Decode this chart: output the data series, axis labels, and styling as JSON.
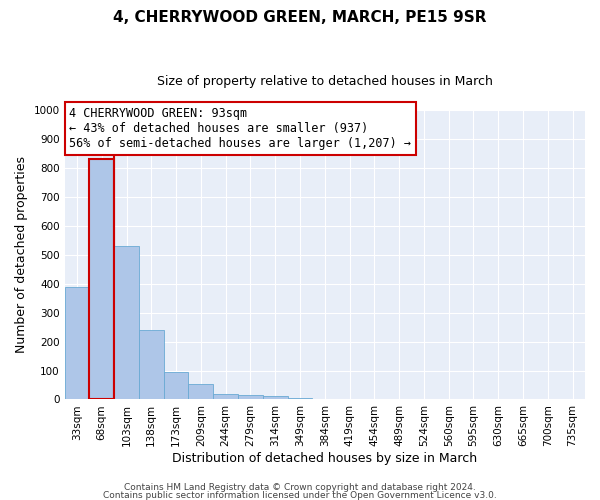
{
  "title": "4, CHERRYWOOD GREEN, MARCH, PE15 9SR",
  "subtitle": "Size of property relative to detached houses in March",
  "xlabel": "Distribution of detached houses by size in March",
  "ylabel": "Number of detached properties",
  "bar_color": "#aec6e8",
  "bar_edge_color": "#6aaad4",
  "highlight_color": "#cc0000",
  "background_color": "#e8eef8",
  "grid_color": "#ffffff",
  "categories": [
    "33sqm",
    "68sqm",
    "103sqm",
    "138sqm",
    "173sqm",
    "209sqm",
    "244sqm",
    "279sqm",
    "314sqm",
    "349sqm",
    "384sqm",
    "419sqm",
    "454sqm",
    "489sqm",
    "524sqm",
    "560sqm",
    "595sqm",
    "630sqm",
    "665sqm",
    "700sqm",
    "735sqm"
  ],
  "values": [
    390,
    830,
    530,
    240,
    95,
    52,
    18,
    15,
    12,
    5,
    1,
    0,
    0,
    0,
    0,
    0,
    0,
    0,
    0,
    0,
    0
  ],
  "highlight_bar_index": 1,
  "red_line_x": 1.5,
  "ylim": [
    0,
    1000
  ],
  "yticks": [
    0,
    100,
    200,
    300,
    400,
    500,
    600,
    700,
    800,
    900,
    1000
  ],
  "annotation_text_line1": "4 CHERRYWOOD GREEN: 93sqm",
  "annotation_text_line2": "← 43% of detached houses are smaller (937)",
  "annotation_text_line3": "56% of semi-detached houses are larger (1,207) →",
  "annotation_box_color": "#ffffff",
  "annotation_box_edge": "#cc0000",
  "footer_line1": "Contains HM Land Registry data © Crown copyright and database right 2024.",
  "footer_line2": "Contains public sector information licensed under the Open Government Licence v3.0.",
  "title_fontsize": 11,
  "subtitle_fontsize": 9,
  "tick_fontsize": 7.5,
  "ylabel_fontsize": 9,
  "xlabel_fontsize": 9,
  "annotation_fontsize": 8.5,
  "footer_fontsize": 6.5
}
